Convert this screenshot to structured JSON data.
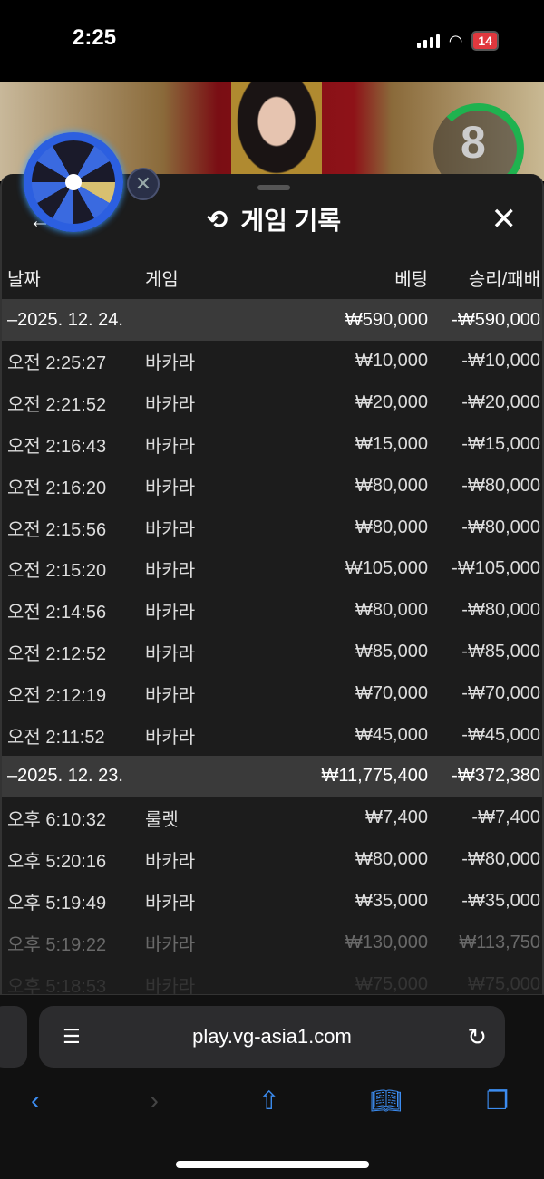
{
  "status_bar": {
    "time": "2:25",
    "battery": "14"
  },
  "video": {
    "countdown": "8",
    "accent": "#1fb24f"
  },
  "sheet": {
    "title": "게임 기록",
    "history_icon": "history-icon",
    "close_icon": "close-icon"
  },
  "columns": {
    "date": "날짜",
    "game": "게임",
    "bet": "베팅",
    "result": "승리/패배"
  },
  "groups": [
    {
      "date": "–2025. 12. 24.",
      "bet": "₩590,000",
      "result": "-₩590,000",
      "rows": [
        {
          "time": "오전 2:25:27",
          "game": "바카라",
          "bet": "₩10,000",
          "result": "-₩10,000"
        },
        {
          "time": "오전 2:21:52",
          "game": "바카라",
          "bet": "₩20,000",
          "result": "-₩20,000"
        },
        {
          "time": "오전 2:16:43",
          "game": "바카라",
          "bet": "₩15,000",
          "result": "-₩15,000"
        },
        {
          "time": "오전 2:16:20",
          "game": "바카라",
          "bet": "₩80,000",
          "result": "-₩80,000"
        },
        {
          "time": "오전 2:15:56",
          "game": "바카라",
          "bet": "₩80,000",
          "result": "-₩80,000"
        },
        {
          "time": "오전 2:15:20",
          "game": "바카라",
          "bet": "₩105,000",
          "result": "-₩105,000"
        },
        {
          "time": "오전 2:14:56",
          "game": "바카라",
          "bet": "₩80,000",
          "result": "-₩80,000"
        },
        {
          "time": "오전 2:12:52",
          "game": "바카라",
          "bet": "₩85,000",
          "result": "-₩85,000"
        },
        {
          "time": "오전 2:12:19",
          "game": "바카라",
          "bet": "₩70,000",
          "result": "-₩70,000"
        },
        {
          "time": "오전 2:11:52",
          "game": "바카라",
          "bet": "₩45,000",
          "result": "-₩45,000"
        }
      ]
    },
    {
      "date": "–2025. 12. 23.",
      "bet": "₩11,775,400",
      "result": "-₩372,380",
      "rows": [
        {
          "time": "오후 6:10:32",
          "game": "룰렛",
          "bet": "₩7,400",
          "result": "-₩7,400"
        },
        {
          "time": "오후 5:20:16",
          "game": "바카라",
          "bet": "₩80,000",
          "result": "-₩80,000"
        },
        {
          "time": "오후 5:19:49",
          "game": "바카라",
          "bet": "₩35,000",
          "result": "-₩35,000"
        },
        {
          "time": "오후 5:19:22",
          "game": "바카라",
          "bet": "₩130,000",
          "result": "₩113,750"
        },
        {
          "time": "오후 5:18:53",
          "game": "바카라",
          "bet": "₩75,000",
          "result": "₩75,000"
        }
      ]
    }
  ],
  "browser": {
    "url": "play.vg-asia1.com",
    "accent": "#3c8cf0"
  }
}
